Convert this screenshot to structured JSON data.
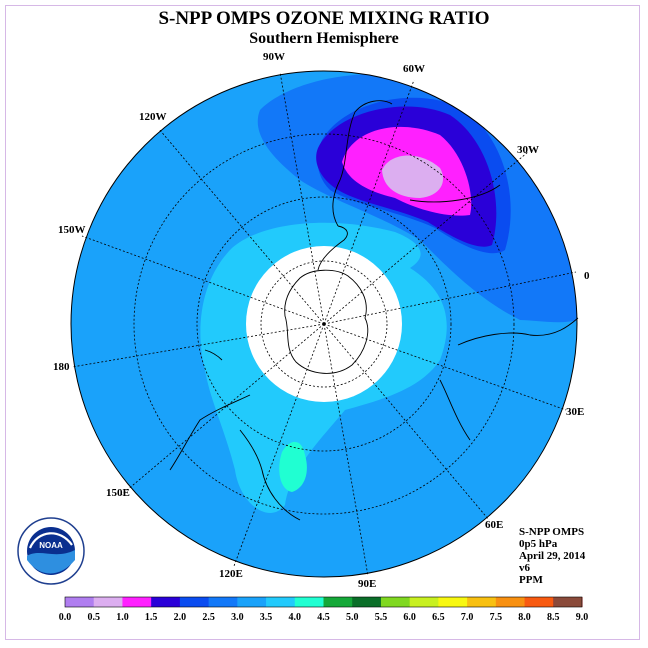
{
  "title": "S-NPP OMPS OZONE MIXING RATIO",
  "subtitle": "Southern Hemisphere",
  "longitude_labels": [
    "90W",
    "60W",
    "30W",
    "0",
    "30E",
    "60E",
    "90E",
    "120E",
    "150E",
    "180",
    "150W",
    "120W"
  ],
  "info": {
    "line1": "S-NPP OMPS",
    "line2": "0p5 hPa",
    "line3": "April 29, 2014",
    "line4": "v6",
    "line5": "PPM"
  },
  "logo_text": "NOAA",
  "colorbar": {
    "labels": [
      "0.0",
      "0.5",
      "1.0",
      "1.5",
      "2.0",
      "2.5",
      "3.0",
      "3.5",
      "4.0",
      "4.5",
      "5.0",
      "5.5",
      "6.0",
      "6.5",
      "7.0",
      "7.5",
      "8.0",
      "8.5",
      "9.0"
    ],
    "colors": [
      "#b07ef0",
      "#dcaef0",
      "#ff20ff",
      "#2a00d8",
      "#0a4cf0",
      "#1278f8",
      "#1aa2fa",
      "#22cafc",
      "#20ffd2",
      "#14a838",
      "#0a6e28",
      "#80d820",
      "#c8f020",
      "#f8f810",
      "#f8c010",
      "#f89010",
      "#f85a10",
      "#f01010",
      "#8a4a3a"
    ]
  },
  "map_colors": {
    "background_field": "#1aa2fa",
    "band_25": "#1278f8",
    "band_20": "#0a4cf0",
    "band_15": "#2a00d8",
    "band_10": "#ff20ff",
    "band_05": "#dcaef0",
    "band_30": "#22cafc",
    "band_35": "#20ffd2",
    "polar_mask": "#ffffff"
  }
}
